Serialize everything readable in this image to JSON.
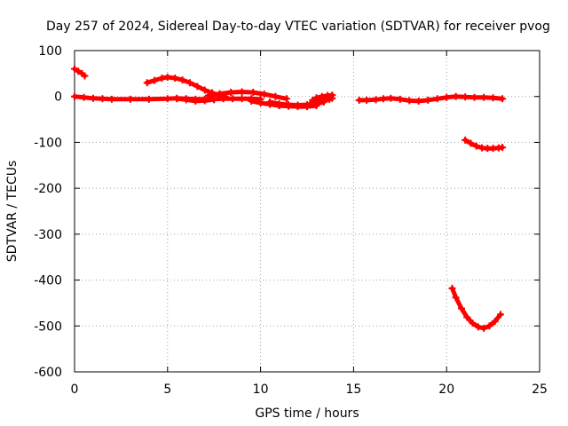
{
  "chart_data": {
    "type": "scatter",
    "title": "Day 257 of 2024, Sidereal Day-to-day VTEC variation (SDTVAR) for receiver pvog",
    "xlabel": "GPS time / hours",
    "ylabel": "SDTVAR / TECUs",
    "xlim": [
      0,
      25
    ],
    "ylim": [
      -600,
      100
    ],
    "x_ticks": [
      0,
      5,
      10,
      15,
      20,
      25
    ],
    "y_ticks": [
      100,
      0,
      -100,
      -200,
      -300,
      -400,
      -500,
      -600
    ],
    "grid": true,
    "legend": "none",
    "series_color": "#ff0000",
    "series": [
      {
        "name": "seg-a",
        "x": [
          0.0,
          0.2,
          0.4,
          0.55
        ],
        "y": [
          60,
          55,
          50,
          45
        ]
      },
      {
        "name": "seg-b",
        "x": [
          0.0,
          0.5,
          1.0,
          1.5,
          2.0,
          3.0,
          4.0,
          5.0,
          5.5,
          6.0,
          6.5,
          7.0,
          7.5,
          8.0,
          8.5,
          9.0,
          9.5,
          10.0
        ],
        "y": [
          0,
          -2,
          -4,
          -5,
          -6,
          -6,
          -6,
          -5,
          -4,
          -5,
          -6,
          -6,
          -6,
          -5,
          -5,
          -5,
          -5,
          -6
        ]
      },
      {
        "name": "seg-c",
        "x": [
          3.9,
          4.3,
          4.7,
          5.0,
          5.4,
          5.8,
          6.2,
          6.6,
          7.0,
          7.4,
          7.8,
          8.1
        ],
        "y": [
          30,
          35,
          40,
          42,
          40,
          36,
          30,
          22,
          14,
          8,
          2,
          0
        ]
      },
      {
        "name": "seg-d",
        "x": [
          5.5,
          6.0,
          6.5,
          7.0,
          7.5
        ],
        "y": [
          -5,
          -7,
          -10,
          -9,
          -7
        ]
      },
      {
        "name": "seg-e",
        "x": [
          7.2,
          7.8,
          8.4,
          9.0,
          9.6,
          10.2,
          10.8,
          11.4
        ],
        "y": [
          2,
          6,
          9,
          10,
          9,
          5,
          0,
          -5
        ]
      },
      {
        "name": "seg-f",
        "x": [
          9.5,
          10.0,
          10.5,
          11.0,
          11.5,
          12.0,
          12.5,
          13.0
        ],
        "y": [
          -10,
          -14,
          -17,
          -20,
          -21,
          -22,
          -22,
          -20
        ]
      },
      {
        "name": "seg-g",
        "x": [
          10.5,
          11.0,
          11.5,
          12.0,
          12.5,
          13.0,
          13.4
        ],
        "y": [
          -12,
          -16,
          -18,
          -19,
          -18,
          -16,
          -12
        ]
      },
      {
        "name": "seg-h",
        "x": [
          12.8,
          13.0,
          13.3,
          13.6,
          13.85
        ],
        "y": [
          -8,
          -3,
          0,
          2,
          3
        ]
      },
      {
        "name": "seg-i",
        "x": [
          12.8,
          13.1,
          13.4,
          13.7,
          13.85
        ],
        "y": [
          -12,
          -10,
          -8,
          -6,
          -4
        ]
      },
      {
        "name": "seg-j",
        "x": [
          15.3,
          15.7,
          16.2,
          16.6,
          17.0,
          17.5,
          18.0,
          18.5,
          19.0,
          19.5,
          20.0,
          20.5,
          21.0,
          21.5,
          22.0,
          22.5,
          23.0
        ],
        "y": [
          -8,
          -8,
          -7,
          -5,
          -4,
          -6,
          -9,
          -10,
          -8,
          -5,
          -2,
          0,
          -1,
          -2,
          -2,
          -3,
          -5
        ]
      },
      {
        "name": "seg-k",
        "x": [
          21.0,
          21.3,
          21.6,
          21.9,
          22.2,
          22.5,
          22.8,
          23.0
        ],
        "y": [
          -95,
          -102,
          -108,
          -112,
          -113,
          -113,
          -112,
          -111
        ]
      },
      {
        "name": "seg-l",
        "x": [
          20.3,
          20.5,
          20.8,
          21.1,
          21.4,
          21.7,
          22.0,
          22.3,
          22.6,
          22.9
        ],
        "y": [
          -418,
          -438,
          -462,
          -481,
          -494,
          -502,
          -505,
          -500,
          -490,
          -475
        ]
      }
    ]
  }
}
